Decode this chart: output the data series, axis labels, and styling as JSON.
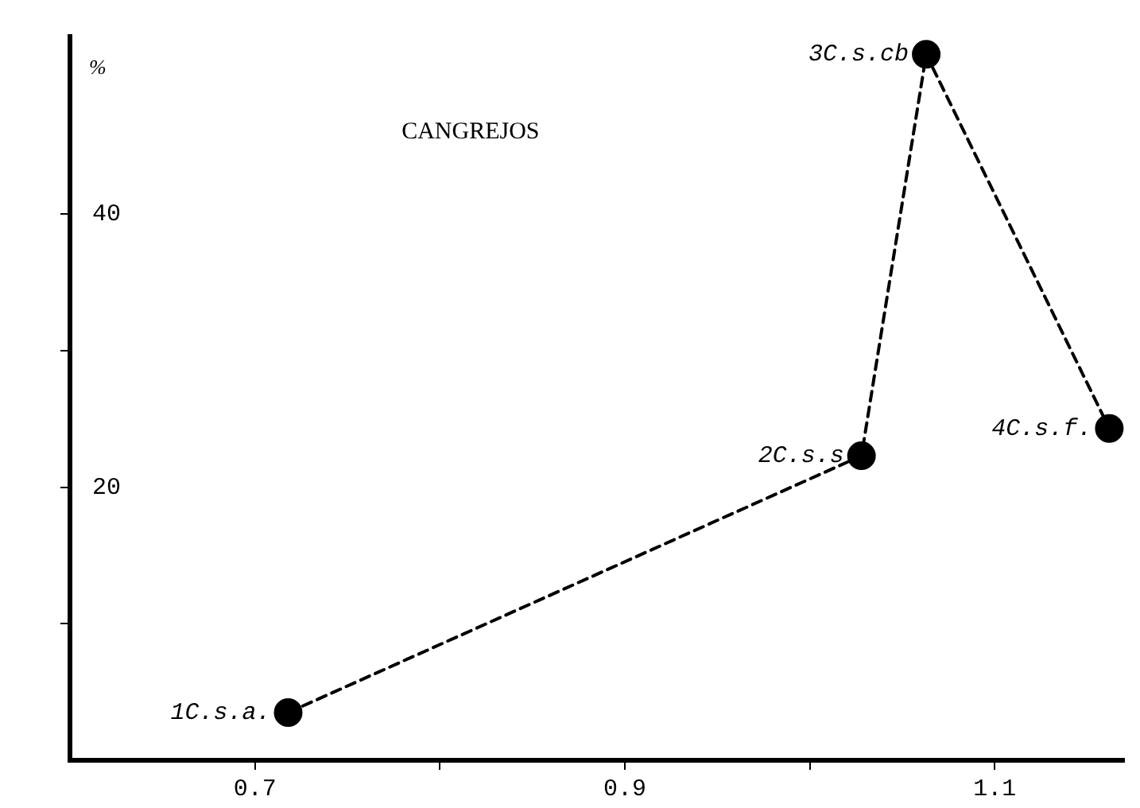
{
  "chart_data": {
    "type": "line",
    "title": "CANGREJOS",
    "ylabel": "%",
    "x": [
      0.718,
      1.028,
      1.063,
      1.162
    ],
    "series": [
      {
        "color": "#000000",
        "values": [
          3.5,
          22.3,
          51.7,
          24.3
        ]
      }
    ],
    "xlim": [
      0.6,
      1.17
    ],
    "xticks": [
      0.7,
      {
        "value": 0.8,
        "label": null
      },
      0.9,
      {
        "value": 1.0,
        "label": null
      },
      1.1
    ],
    "ylim": [
      0,
      53
    ],
    "yticks": [
      {
        "value": 10,
        "label": null
      },
      20,
      {
        "value": 30,
        "label": null
      },
      40
    ],
    "annotations": [
      {
        "text": "1C.s.a.",
        "x": 0.718,
        "y": 3.5
      },
      {
        "text": "2C.s.s",
        "x": 1.028,
        "y": 22.3
      },
      {
        "text": "3C.s.cb",
        "x": 1.063,
        "y": 51.7
      },
      {
        "text": "4C.s.f.",
        "x": 1.162,
        "y": 24.3
      }
    ],
    "grid": false,
    "legend": false,
    "marker": "circle",
    "line_style": "dashed"
  }
}
